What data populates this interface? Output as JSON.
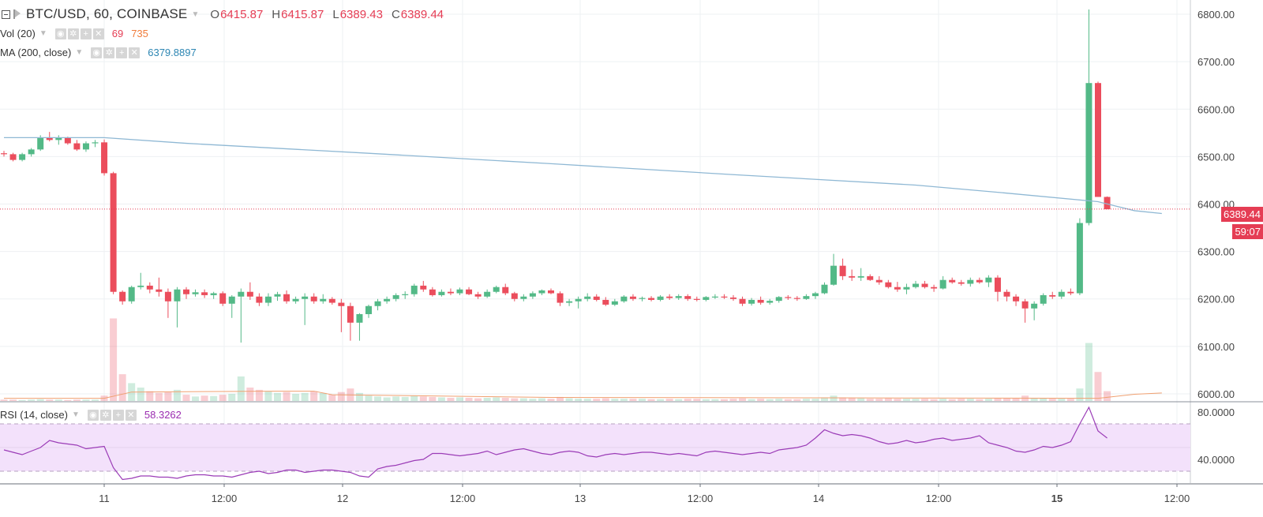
{
  "header": {
    "symbol": "BTC/USD, 60, COINBASE",
    "ohlc": [
      {
        "key": "O",
        "value": "6415.87"
      },
      {
        "key": "H",
        "value": "6415.87"
      },
      {
        "key": "L",
        "value": "6389.43"
      },
      {
        "key": "C",
        "value": "6389.44"
      }
    ]
  },
  "indicators": {
    "vol": {
      "name": "Vol (20)",
      "value1": "69",
      "value2": "735"
    },
    "ma": {
      "name": "MA (200, close)",
      "value": "6379.8897"
    },
    "rsi": {
      "name": "RSI (14, close)",
      "value": "58.3262"
    }
  },
  "price_tags": {
    "last_price": "6389.44",
    "countdown": "59:07"
  },
  "colors": {
    "up": "#53b987",
    "down": "#eb4d5c",
    "ma": "#8fb8d4",
    "rsi": "#9b3cb7",
    "rsi_band": "#f3e1fb",
    "vol_ma": "#f0a070",
    "grid": "#eef0f3",
    "accent_red": "#e53d54"
  },
  "chart_data": {
    "type": "candlestick",
    "x_tick_labels": [
      "11",
      "12:00",
      "12",
      "12:00",
      "13",
      "12:00",
      "14",
      "12:00",
      "15",
      "12:00"
    ],
    "price_axis": {
      "ylim": [
        5985,
        6830
      ],
      "ticks": [
        "6000.00",
        "6100.00",
        "6200.00",
        "6300.00",
        "6400.00",
        "6500.00",
        "6600.00",
        "6700.00",
        "6800.00"
      ]
    },
    "rsi_axis": {
      "ylim": [
        20,
        88
      ],
      "ticks": [
        "40.0000",
        "80.0000"
      ],
      "band": [
        30,
        70
      ]
    },
    "candles": [
      [
        6507,
        6512,
        6500,
        6505
      ],
      [
        6505,
        6508,
        6490,
        6493
      ],
      [
        6493,
        6508,
        6490,
        6505
      ],
      [
        6505,
        6518,
        6500,
        6515
      ],
      [
        6515,
        6545,
        6512,
        6540
      ],
      [
        6540,
        6552,
        6532,
        6535
      ],
      [
        6535,
        6545,
        6525,
        6540
      ],
      [
        6540,
        6542,
        6525,
        6528
      ],
      [
        6528,
        6535,
        6512,
        6515
      ],
      [
        6515,
        6532,
        6510,
        6528
      ],
      [
        6528,
        6535,
        6520,
        6530
      ],
      [
        6530,
        6536,
        6460,
        6465
      ],
      [
        6465,
        6468,
        6210,
        6215
      ],
      [
        6215,
        6218,
        6188,
        6195
      ],
      [
        6195,
        6228,
        6190,
        6225
      ],
      [
        6225,
        6255,
        6220,
        6228
      ],
      [
        6228,
        6235,
        6212,
        6220
      ],
      [
        6220,
        6245,
        6205,
        6215
      ],
      [
        6215,
        6222,
        6160,
        6195
      ],
      [
        6195,
        6225,
        6140,
        6220
      ],
      [
        6220,
        6225,
        6200,
        6210
      ],
      [
        6210,
        6220,
        6205,
        6214
      ],
      [
        6214,
        6220,
        6202,
        6208
      ],
      [
        6208,
        6215,
        6200,
        6212
      ],
      [
        6212,
        6216,
        6185,
        6190
      ],
      [
        6190,
        6208,
        6160,
        6205
      ],
      [
        6205,
        6222,
        6108,
        6215
      ],
      [
        6215,
        6235,
        6198,
        6205
      ],
      [
        6205,
        6212,
        6185,
        6192
      ],
      [
        6192,
        6212,
        6185,
        6205
      ],
      [
        6205,
        6215,
        6196,
        6210
      ],
      [
        6210,
        6218,
        6190,
        6195
      ],
      [
        6195,
        6205,
        6190,
        6200
      ],
      [
        6200,
        6212,
        6145,
        6205
      ],
      [
        6205,
        6212,
        6190,
        6195
      ],
      [
        6195,
        6210,
        6190,
        6200
      ],
      [
        6200,
        6204,
        6188,
        6192
      ],
      [
        6192,
        6200,
        6130,
        6185
      ],
      [
        6185,
        6192,
        6112,
        6150
      ],
      [
        6150,
        6170,
        6112,
        6168
      ],
      [
        6168,
        6188,
        6160,
        6185
      ],
      [
        6185,
        6200,
        6176,
        6195
      ],
      [
        6195,
        6205,
        6190,
        6200
      ],
      [
        6200,
        6212,
        6195,
        6208
      ],
      [
        6208,
        6216,
        6200,
        6210
      ],
      [
        6210,
        6232,
        6205,
        6228
      ],
      [
        6228,
        6238,
        6215,
        6220
      ],
      [
        6220,
        6225,
        6205,
        6208
      ],
      [
        6208,
        6220,
        6205,
        6215
      ],
      [
        6215,
        6222,
        6208,
        6212
      ],
      [
        6212,
        6224,
        6208,
        6220
      ],
      [
        6220,
        6225,
        6208,
        6210
      ],
      [
        6210,
        6215,
        6200,
        6205
      ],
      [
        6205,
        6220,
        6202,
        6215
      ],
      [
        6215,
        6228,
        6212,
        6225
      ],
      [
        6225,
        6232,
        6208,
        6212
      ],
      [
        6212,
        6215,
        6195,
        6200
      ],
      [
        6200,
        6210,
        6195,
        6205
      ],
      [
        6205,
        6216,
        6200,
        6212
      ],
      [
        6212,
        6220,
        6208,
        6218
      ],
      [
        6218,
        6222,
        6210,
        6212
      ],
      [
        6212,
        6216,
        6185,
        6192
      ],
      [
        6192,
        6200,
        6185,
        6195
      ],
      [
        6195,
        6205,
        6180,
        6200
      ],
      [
        6200,
        6212,
        6195,
        6205
      ],
      [
        6205,
        6210,
        6195,
        6198
      ],
      [
        6198,
        6204,
        6185,
        6188
      ],
      [
        6188,
        6200,
        6185,
        6195
      ],
      [
        6195,
        6208,
        6192,
        6205
      ],
      [
        6205,
        6210,
        6196,
        6200
      ],
      [
        6200,
        6205,
        6195,
        6202
      ],
      [
        6202,
        6206,
        6195,
        6198
      ],
      [
        6198,
        6208,
        6195,
        6205
      ],
      [
        6205,
        6210,
        6198,
        6202
      ],
      [
        6202,
        6210,
        6198,
        6206
      ],
      [
        6206,
        6210,
        6196,
        6200
      ],
      [
        6200,
        6205,
        6195,
        6198
      ],
      [
        6198,
        6206,
        6195,
        6204
      ],
      [
        6204,
        6210,
        6200,
        6205
      ],
      [
        6205,
        6210,
        6200,
        6203
      ],
      [
        6203,
        6208,
        6196,
        6200
      ],
      [
        6200,
        6205,
        6185,
        6190
      ],
      [
        6190,
        6202,
        6186,
        6198
      ],
      [
        6198,
        6205,
        6188,
        6192
      ],
      [
        6192,
        6200,
        6188,
        6196
      ],
      [
        6196,
        6206,
        6192,
        6204
      ],
      [
        6204,
        6208,
        6198,
        6202
      ],
      [
        6202,
        6206,
        6196,
        6200
      ],
      [
        6200,
        6210,
        6198,
        6206
      ],
      [
        6206,
        6215,
        6200,
        6212
      ],
      [
        6212,
        6235,
        6210,
        6230
      ],
      [
        6230,
        6295,
        6228,
        6270
      ],
      [
        6270,
        6285,
        6240,
        6248
      ],
      [
        6248,
        6262,
        6238,
        6245
      ],
      [
        6245,
        6265,
        6238,
        6248
      ],
      [
        6248,
        6252,
        6238,
        6240
      ],
      [
        6240,
        6248,
        6230,
        6235
      ],
      [
        6235,
        6240,
        6222,
        6225
      ],
      [
        6225,
        6236,
        6215,
        6220
      ],
      [
        6220,
        6232,
        6210,
        6225
      ],
      [
        6225,
        6238,
        6222,
        6232
      ],
      [
        6232,
        6238,
        6222,
        6225
      ],
      [
        6225,
        6230,
        6215,
        6222
      ],
      [
        6222,
        6248,
        6220,
        6240
      ],
      [
        6240,
        6245,
        6232,
        6235
      ],
      [
        6235,
        6240,
        6228,
        6232
      ],
      [
        6232,
        6245,
        6226,
        6240
      ],
      [
        6240,
        6245,
        6232,
        6235
      ],
      [
        6235,
        6250,
        6225,
        6245
      ],
      [
        6245,
        6250,
        6195,
        6215
      ],
      [
        6215,
        6220,
        6195,
        6205
      ],
      [
        6205,
        6210,
        6185,
        6195
      ],
      [
        6195,
        6200,
        6150,
        6180
      ],
      [
        6180,
        6195,
        6155,
        6190
      ],
      [
        6190,
        6212,
        6186,
        6208
      ],
      [
        6208,
        6215,
        6200,
        6205
      ],
      [
        6205,
        6220,
        6200,
        6215
      ],
      [
        6215,
        6222,
        6208,
        6212
      ],
      [
        6212,
        6370,
        6208,
        6360
      ],
      [
        6360,
        6810,
        6355,
        6655
      ],
      [
        6655,
        6658,
        6415,
        6415
      ],
      [
        6415,
        6416,
        6389,
        6389
      ]
    ],
    "volume": [
      3,
      3,
      2,
      3,
      4,
      3,
      3,
      2,
      3,
      3,
      3,
      12,
      185,
      60,
      40,
      30,
      22,
      18,
      20,
      25,
      14,
      10,
      12,
      11,
      14,
      16,
      55,
      30,
      25,
      22,
      18,
      20,
      16,
      18,
      22,
      18,
      14,
      20,
      28,
      18,
      12,
      10,
      8,
      10,
      9,
      12,
      10,
      9,
      8,
      7,
      8,
      7,
      6,
      7,
      8,
      7,
      6,
      6,
      5,
      6,
      5,
      9,
      6,
      5,
      5,
      5,
      6,
      5,
      5,
      5,
      5,
      4,
      4,
      5,
      4,
      5,
      5,
      4,
      4,
      4,
      5,
      6,
      4,
      5,
      4,
      5,
      4,
      4,
      5,
      5,
      8,
      12,
      8,
      7,
      6,
      5,
      5,
      6,
      5,
      5,
      5,
      5,
      4,
      5,
      4,
      5,
      5,
      4,
      5,
      7,
      6,
      6,
      12,
      7,
      6,
      5,
      5,
      5,
      28,
      130,
      65,
      22
    ],
    "ma": [
      [
        0,
        6540
      ],
      [
        11,
        6540
      ],
      [
        20,
        6528
      ],
      [
        40,
        6507
      ],
      [
        60,
        6485
      ],
      [
        80,
        6462
      ],
      [
        100,
        6440
      ],
      [
        110,
        6423
      ],
      [
        120,
        6405
      ],
      [
        124,
        6386
      ],
      [
        127,
        6380
      ]
    ],
    "vol_ma": [
      [
        0,
        6
      ],
      [
        11,
        6
      ],
      [
        14,
        20
      ],
      [
        30,
        22
      ],
      [
        34,
        22
      ],
      [
        36,
        14
      ],
      [
        60,
        8
      ],
      [
        90,
        7
      ],
      [
        120,
        6
      ],
      [
        124,
        15
      ],
      [
        127,
        18
      ]
    ],
    "rsi": [
      48,
      46,
      44,
      47,
      50,
      56,
      54,
      53,
      52,
      49,
      50,
      51,
      33,
      23,
      24,
      26,
      26,
      25,
      25,
      24,
      26,
      27,
      27,
      26,
      26,
      25,
      27,
      29,
      30,
      28,
      29,
      31,
      31,
      29,
      30,
      31,
      31,
      30,
      29,
      26,
      25,
      32,
      34,
      35,
      37,
      39,
      40,
      45,
      45,
      44,
      43,
      44,
      45,
      47,
      44,
      46,
      48,
      49,
      47,
      45,
      44,
      46,
      47,
      46,
      43,
      42,
      44,
      45,
      44,
      45,
      46,
      46,
      45,
      44,
      45,
      44,
      43,
      46,
      47,
      46,
      45,
      44,
      45,
      46,
      45,
      48,
      49,
      50,
      52,
      58,
      65,
      62,
      60,
      61,
      60,
      58,
      55,
      53,
      54,
      56,
      54,
      55,
      57,
      58,
      56,
      57,
      58,
      60,
      54,
      52,
      50,
      47,
      46,
      48,
      51,
      50,
      52,
      55,
      70,
      84,
      64,
      58
    ]
  }
}
